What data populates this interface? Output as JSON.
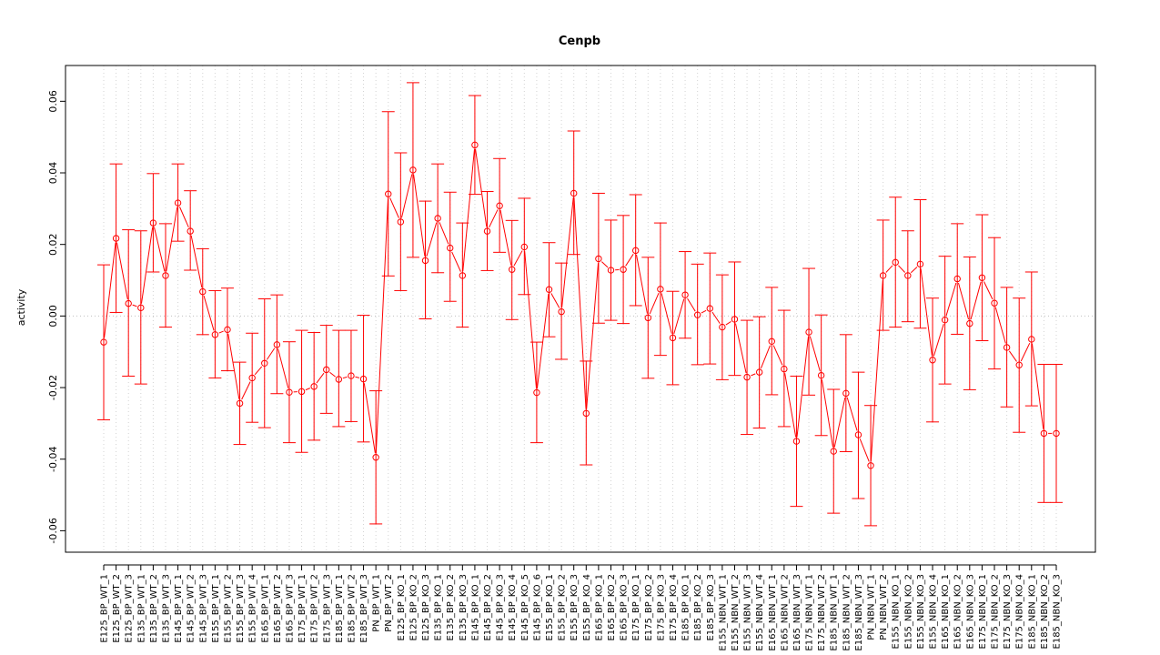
{
  "chart_data": {
    "type": "line",
    "title": "Cenpb",
    "xlabel": "",
    "ylabel": "activity",
    "ylim": [
      -0.066,
      0.07
    ],
    "yticks": [
      -0.06,
      -0.04,
      -0.02,
      0.0,
      0.02,
      0.04,
      0.06
    ],
    "ytick_labels": [
      "-0.06",
      "-0.04",
      "-0.02",
      "0.00",
      "0.02",
      "0.04",
      "0.06"
    ],
    "grid": true,
    "error_bars": true,
    "color": "#ff0000",
    "categories": [
      "E125_BP_WT_1",
      "E125_BP_WT_2",
      "E125_BP_WT_3",
      "E135_BP_WT_1",
      "E135_BP_WT_2",
      "E135_BP_WT_3",
      "E145_BP_WT_1",
      "E145_BP_WT_2",
      "E145_BP_WT_3",
      "E155_BP_WT_1",
      "E155_BP_WT_2",
      "E155_BP_WT_3",
      "E155_BP_WT_4",
      "E165_BP_WT_1",
      "E165_BP_WT_2",
      "E165_BP_WT_3",
      "E175_BP_WT_1",
      "E175_BP_WT_2",
      "E175_BP_WT_3",
      "E185_BP_WT_1",
      "E185_BP_WT_2",
      "E185_BP_WT_3",
      "PN_BP_WT_1",
      "PN_BP_WT_2",
      "E125_BP_KO_1",
      "E125_BP_KO_2",
      "E125_BP_KO_3",
      "E135_BP_KO_1",
      "E135_BP_KO_2",
      "E135_BP_KO_3",
      "E145_BP_KO_1",
      "E145_BP_KO_2",
      "E145_BP_KO_3",
      "E145_BP_KO_4",
      "E145_BP_KO_5",
      "E145_BP_KO_6",
      "E155_BP_KO_1",
      "E155_BP_KO_2",
      "E155_BP_KO_3",
      "E155_BP_KO_4",
      "E165_BP_KO_1",
      "E165_BP_KO_2",
      "E165_BP_KO_3",
      "E175_BP_KO_1",
      "E175_BP_KO_2",
      "E175_BP_KO_3",
      "E175_BP_KO_4",
      "E185_BP_KO_1",
      "E185_BP_KO_2",
      "E185_BP_KO_3",
      "E155_NBN_WT_1",
      "E155_NBN_WT_2",
      "E155_NBN_WT_3",
      "E155_NBN_WT_4",
      "E165_NBN_WT_1",
      "E165_NBN_WT_2",
      "E165_NBN_WT_3",
      "E175_NBN_WT_1",
      "E175_NBN_WT_2",
      "E185_NBN_WT_1",
      "E185_NBN_WT_2",
      "E185_NBN_WT_3",
      "PN_NBN_WT_1",
      "PN_NBN_WT_2",
      "E155_NBN_KO_1",
      "E155_NBN_KO_2",
      "E155_NBN_KO_3",
      "E155_NBN_KO_4",
      "E165_NBN_KO_1",
      "E165_NBN_KO_2",
      "E165_NBN_KO_3",
      "E175_NBN_KO_1",
      "E175_NBN_KO_2",
      "E175_NBN_KO_3",
      "E175_NBN_KO_4",
      "E185_NBN_KO_1",
      "E185_NBN_KO_2",
      "E185_NBN_KO_3"
    ],
    "values": [
      -0.0073,
      0.0217,
      0.0035,
      0.0023,
      0.026,
      0.0113,
      0.0316,
      0.0237,
      0.0068,
      -0.0052,
      -0.0038,
      -0.0244,
      -0.0173,
      -0.0132,
      -0.008,
      -0.0213,
      -0.0211,
      -0.0197,
      -0.015,
      -0.0177,
      -0.0167,
      -0.0176,
      -0.0395,
      0.0341,
      0.0263,
      0.0408,
      0.0155,
      0.0273,
      0.019,
      0.0113,
      0.0478,
      0.0237,
      0.0308,
      0.013,
      0.0193,
      -0.0214,
      0.0074,
      0.0012,
      0.0343,
      -0.0272,
      0.016,
      0.0128,
      0.013,
      0.0183,
      -0.0005,
      0.0075,
      -0.0061,
      0.0059,
      0.0003,
      0.0021,
      -0.0031,
      -0.0009,
      -0.0171,
      -0.0157,
      -0.0071,
      -0.0148,
      -0.035,
      -0.0045,
      -0.0166,
      -0.0378,
      -0.0216,
      -0.0332,
      -0.0418,
      0.0113,
      0.015,
      0.0113,
      0.0145,
      -0.0123,
      -0.0011,
      0.0104,
      -0.0021,
      0.0107,
      0.0036,
      -0.0088,
      -0.0137,
      -0.0065,
      -0.0328,
      -0.0328
    ],
    "lower": [
      -0.029,
      0.001,
      -0.0168,
      -0.019,
      0.0123,
      -0.0031,
      0.0209,
      0.0128,
      -0.0052,
      -0.0173,
      -0.0153,
      -0.0359,
      -0.0297,
      -0.0312,
      -0.0217,
      -0.0354,
      -0.0381,
      -0.0347,
      -0.0272,
      -0.0309,
      -0.0295,
      -0.0352,
      -0.0581,
      0.0112,
      0.0071,
      0.0164,
      -0.0008,
      0.0121,
      0.0041,
      -0.0031,
      0.034,
      0.0127,
      0.0178,
      -0.001,
      0.006,
      -0.0354,
      -0.0058,
      -0.0121,
      0.0172,
      -0.0416,
      -0.002,
      -0.0012,
      -0.0021,
      0.0029,
      -0.0174,
      -0.011,
      -0.0192,
      -0.0062,
      -0.0136,
      -0.0134,
      -0.0178,
      -0.0166,
      -0.0331,
      -0.0313,
      -0.022,
      -0.0309,
      -0.0532,
      -0.0221,
      -0.0334,
      -0.0551,
      -0.0379,
      -0.051,
      -0.0586,
      -0.004,
      -0.0031,
      -0.0016,
      -0.0034,
      -0.0296,
      -0.019,
      -0.0051,
      -0.0206,
      -0.0069,
      -0.0148,
      -0.0254,
      -0.0325,
      -0.0251,
      -0.0521,
      -0.0521
    ],
    "upper": [
      0.0143,
      0.0425,
      0.0241,
      0.0238,
      0.0398,
      0.0258,
      0.0425,
      0.035,
      0.0188,
      0.0071,
      0.0078,
      -0.0129,
      -0.0048,
      0.0048,
      0.0059,
      -0.0072,
      -0.004,
      -0.0046,
      -0.0026,
      -0.004,
      -0.004,
      0.0002,
      -0.0209,
      0.0571,
      0.0456,
      0.0652,
      0.0321,
      0.0425,
      0.0346,
      0.026,
      0.0616,
      0.0348,
      0.044,
      0.0267,
      0.0329,
      -0.0073,
      0.0205,
      0.0148,
      0.0517,
      -0.0126,
      0.0343,
      0.0268,
      0.0281,
      0.0339,
      0.0164,
      0.026,
      0.0069,
      0.018,
      0.0145,
      0.0176,
      0.0115,
      0.0151,
      -0.0012,
      -0.0002,
      0.008,
      0.0016,
      -0.0168,
      0.0133,
      0.0003,
      -0.0205,
      -0.0052,
      -0.0157,
      -0.025,
      0.0268,
      0.0332,
      0.0238,
      0.0325,
      0.005,
      0.0167,
      0.0258,
      0.0165,
      0.0283,
      0.0219,
      0.008,
      0.005,
      0.0123,
      -0.0135,
      -0.0135
    ]
  }
}
